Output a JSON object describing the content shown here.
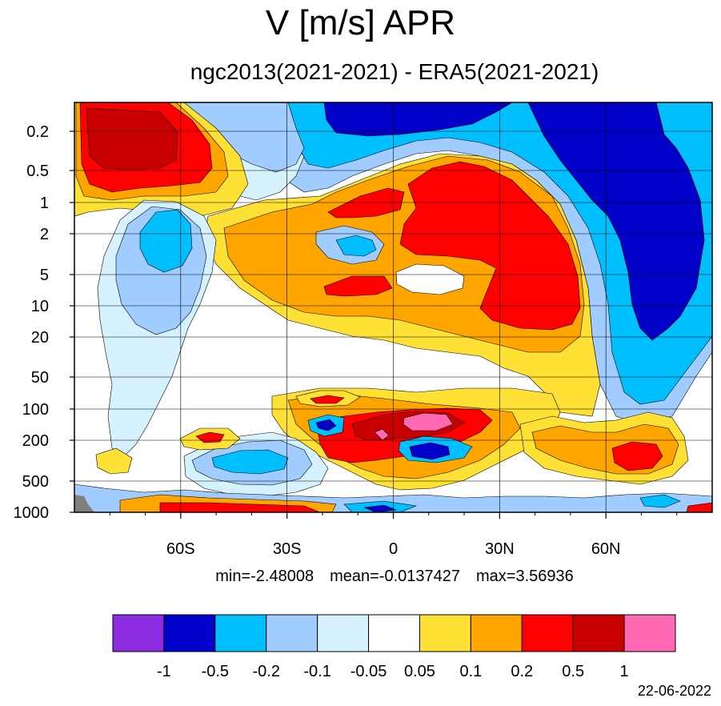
{
  "header": {
    "title": "V [m/s] APR",
    "subtitle": "ngc2013(2021-2021) - ERA5(2021-2021)"
  },
  "stats": {
    "min": "min=-2.48008",
    "mean": "mean=-0.0137427",
    "max": "max=3.56936"
  },
  "footer": {
    "date": "22-06-2022"
  },
  "chart_data": {
    "type": "heatmap",
    "title": "V [m/s] APR",
    "subtitle": "ngc2013(2021-2021) - ERA5(2021-2021)",
    "x_ticks": [
      "60S",
      "30S",
      "0",
      "30N",
      "60N"
    ],
    "x_tick_values": [
      -60,
      -30,
      0,
      30,
      60
    ],
    "xlim": [
      -90,
      90
    ],
    "y_ticks": [
      "0.2",
      "0.5",
      "1",
      "2",
      "5",
      "10",
      "20",
      "50",
      "100",
      "200",
      "500",
      "1000"
    ],
    "y_tick_values": [
      0.2,
      0.5,
      1,
      2,
      5,
      10,
      20,
      50,
      100,
      200,
      500,
      1000
    ],
    "ylim": [
      1000,
      0.1
    ],
    "y_scale": "log",
    "grid": true,
    "colorbar": {
      "labels": [
        "-1",
        "-0.5",
        "-0.2",
        "-0.1",
        "-0.05",
        "0.05",
        "0.1",
        "0.2",
        "0.5",
        "1"
      ],
      "colors": [
        "#8b2be2",
        "#0000c8",
        "#00bfff",
        "#a0ccff",
        "#d6f2ff",
        "#ffffff",
        "#ffe135",
        "#ffa500",
        "#ff0000",
        "#c80000",
        "#ff69b4"
      ]
    },
    "regions": [
      {
        "level": 3,
        "lat": [
          -90,
          -90
        ],
        "value": "0.5",
        "pts": [
          [
            -87,
            0.12
          ],
          [
            -50,
            0.14
          ],
          [
            -40,
            0.5
          ],
          [
            -50,
            1.3
          ],
          [
            -78,
            1.3
          ],
          [
            -88,
            0.7
          ]
        ]
      },
      {
        "level": 2,
        "lat": [],
        "value": "0.2",
        "pts": [
          [
            -86,
            0.14
          ],
          [
            -55,
            0.2
          ],
          [
            -48,
            0.6
          ],
          [
            -60,
            1.0
          ],
          [
            -82,
            0.8
          ]
        ]
      },
      {
        "level": 3,
        "lat": [],
        "value": "1",
        "pts": [
          [
            -84,
            0.16
          ],
          [
            -60,
            0.22
          ],
          [
            -60,
            0.5
          ],
          [
            -80,
            0.5
          ]
        ]
      }
    ]
  }
}
